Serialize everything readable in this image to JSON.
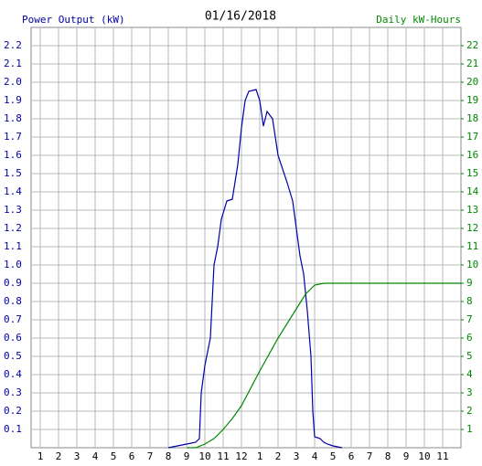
{
  "chart_data": {
    "type": "line",
    "title": "01/16/2018",
    "y_label": "Power Output (kW)",
    "y2_label": "Daily kW-Hours",
    "xlim": [
      0.5,
      24
    ],
    "ylim": [
      0,
      2.3
    ],
    "y2lim": [
      0,
      23
    ],
    "grid": true,
    "xticks": [
      1,
      2,
      3,
      4,
      5,
      6,
      7,
      8,
      9,
      10,
      11,
      12,
      {
        "value": 13,
        "label": "1"
      },
      {
        "value": 14,
        "label": "2"
      },
      {
        "value": 15,
        "label": "3"
      },
      {
        "value": 16,
        "label": "4"
      },
      {
        "value": 17,
        "label": "5"
      },
      {
        "value": 18,
        "label": "6"
      },
      {
        "value": 19,
        "label": "7"
      },
      {
        "value": 20,
        "label": "8"
      },
      {
        "value": 21,
        "label": "9"
      },
      {
        "value": 22,
        "label": "10"
      },
      {
        "value": 23,
        "label": "11"
      }
    ],
    "yticks": [
      0.1,
      0.2,
      0.3,
      0.4,
      0.5,
      0.6,
      0.7,
      0.8,
      0.9,
      {
        "value": 1,
        "label": "1.0"
      },
      1.1,
      1.2,
      1.3,
      1.4,
      1.5,
      1.6,
      1.7,
      1.8,
      1.9,
      {
        "value": 2,
        "label": "2.0"
      },
      2.1,
      2.2
    ],
    "y2ticks": [
      1,
      2,
      3,
      4,
      5,
      6,
      7,
      8,
      9,
      10,
      11,
      12,
      13,
      14,
      15,
      16,
      17,
      18,
      19,
      20,
      21,
      22
    ],
    "series": [
      {
        "name": "Power Output (kW)",
        "color": "#0000aa",
        "x": [
          8.0,
          8.5,
          9.0,
          9.5,
          9.7,
          9.8,
          10.0,
          10.3,
          10.5,
          10.7,
          10.9,
          11.2,
          11.5,
          11.8,
          12.0,
          12.2,
          12.4,
          12.8,
          13.0,
          13.2,
          13.4,
          13.7,
          14.0,
          14.5,
          14.8,
          15.0,
          15.2,
          15.4,
          15.6,
          15.8,
          15.9,
          16.0,
          16.3,
          16.5,
          16.7,
          17.0,
          17.5
        ],
        "values": [
          0.0,
          0.01,
          0.02,
          0.03,
          0.05,
          0.3,
          0.45,
          0.6,
          1.0,
          1.1,
          1.25,
          1.35,
          1.36,
          1.55,
          1.75,
          1.9,
          1.95,
          1.96,
          1.9,
          1.76,
          1.84,
          1.8,
          1.6,
          1.45,
          1.35,
          1.2,
          1.05,
          0.95,
          0.75,
          0.5,
          0.2,
          0.06,
          0.05,
          0.03,
          0.02,
          0.01,
          0.0
        ]
      },
      {
        "name": "Daily kW-Hours",
        "color": "#008800",
        "axis": "y2",
        "x": [
          9.0,
          9.5,
          10.0,
          10.5,
          11.0,
          11.5,
          12.0,
          13.0,
          14.0,
          15.0,
          15.5,
          16.0,
          16.5,
          24.0
        ],
        "values": [
          0.0,
          0.0,
          0.2,
          0.5,
          1.0,
          1.6,
          2.3,
          4.2,
          6.0,
          7.6,
          8.4,
          8.9,
          9.0,
          9.0
        ]
      }
    ]
  }
}
